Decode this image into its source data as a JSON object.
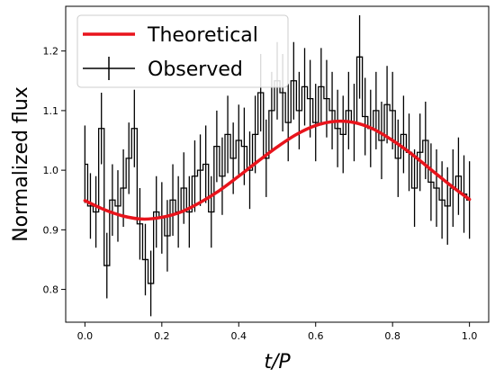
{
  "chart_data": {
    "type": "line",
    "xlabel": "t/P",
    "ylabel": "Normalized flux",
    "xlim": [
      -0.05,
      1.05
    ],
    "ylim": [
      0.745,
      1.275
    ],
    "xticks": [
      "0.0",
      "0.2",
      "0.4",
      "0.6",
      "0.8",
      "1.0"
    ],
    "yticks": [
      "0.8",
      "0.9",
      "1.0",
      "1.1",
      "1.2"
    ],
    "grid": false,
    "legend_position": "top-left",
    "series": [
      {
        "name": "Theoretical",
        "kind": "line",
        "color": "#e8141c",
        "x": [
          0,
          0.05,
          0.1,
          0.15,
          0.2,
          0.25,
          0.3,
          0.35,
          0.4,
          0.45,
          0.5,
          0.55,
          0.6,
          0.65,
          0.7,
          0.75,
          0.8,
          0.85,
          0.9,
          0.95,
          1.0
        ],
        "y": [
          0.949,
          0.934,
          0.923,
          0.918,
          0.921,
          0.93,
          0.946,
          0.966,
          0.99,
          1.015,
          1.039,
          1.06,
          1.075,
          1.082,
          1.08,
          1.069,
          1.05,
          1.027,
          1.001,
          0.975,
          0.951
        ]
      },
      {
        "name": "Observed",
        "kind": "step-errorbar",
        "color": "#000000",
        "x": [
          0.0,
          0.0143,
          0.0286,
          0.0429,
          0.0571,
          0.0714,
          0.0857,
          0.1,
          0.1143,
          0.1286,
          0.1429,
          0.1571,
          0.1714,
          0.1857,
          0.2,
          0.2143,
          0.2286,
          0.2429,
          0.2571,
          0.2714,
          0.2857,
          0.3,
          0.3143,
          0.3286,
          0.3429,
          0.3571,
          0.3714,
          0.3857,
          0.4,
          0.4143,
          0.4286,
          0.4429,
          0.4571,
          0.4714,
          0.4857,
          0.5,
          0.5143,
          0.5286,
          0.5429,
          0.5571,
          0.5714,
          0.5857,
          0.6,
          0.6143,
          0.6286,
          0.6429,
          0.6571,
          0.6714,
          0.6857,
          0.7,
          0.7143,
          0.7286,
          0.7429,
          0.7571,
          0.7714,
          0.7857,
          0.8,
          0.8143,
          0.8286,
          0.8429,
          0.8571,
          0.8714,
          0.8857,
          0.9,
          0.9143,
          0.9286,
          0.9429,
          0.9571,
          0.9714,
          0.9857,
          1.0
        ],
        "y": [
          1.01,
          0.94,
          0.93,
          1.07,
          0.84,
          0.95,
          0.94,
          0.97,
          1.02,
          1.07,
          0.91,
          0.85,
          0.81,
          0.93,
          0.92,
          0.89,
          0.95,
          0.93,
          0.97,
          0.93,
          0.99,
          1.0,
          1.01,
          0.93,
          1.04,
          0.99,
          1.06,
          1.02,
          1.05,
          1.04,
          1.0,
          1.06,
          1.13,
          1.02,
          1.1,
          1.15,
          1.13,
          1.08,
          1.15,
          1.1,
          1.14,
          1.12,
          1.08,
          1.14,
          1.12,
          1.1,
          1.07,
          1.06,
          1.1,
          1.08,
          1.19,
          1.09,
          1.07,
          1.1,
          1.05,
          1.11,
          1.1,
          1.02,
          1.06,
          1.03,
          0.97,
          1.03,
          1.05,
          0.98,
          0.97,
          0.95,
          0.94,
          0.97,
          0.99,
          0.96,
          0.95
        ],
        "yerr": [
          0.065,
          0.055,
          0.06,
          0.06,
          0.055,
          0.06,
          0.06,
          0.065,
          0.06,
          0.065,
          0.06,
          0.06,
          0.055,
          0.06,
          0.06,
          0.06,
          0.06,
          0.06,
          0.06,
          0.06,
          0.06,
          0.06,
          0.065,
          0.06,
          0.06,
          0.065,
          0.065,
          0.06,
          0.06,
          0.065,
          0.065,
          0.065,
          0.065,
          0.065,
          0.065,
          0.065,
          0.065,
          0.065,
          0.065,
          0.065,
          0.065,
          0.065,
          0.065,
          0.065,
          0.065,
          0.065,
          0.065,
          0.065,
          0.065,
          0.065,
          0.07,
          0.065,
          0.065,
          0.065,
          0.065,
          0.065,
          0.065,
          0.065,
          0.065,
          0.065,
          0.065,
          0.065,
          0.065,
          0.065,
          0.065,
          0.065,
          0.065,
          0.065,
          0.065,
          0.065,
          0.065
        ]
      }
    ]
  }
}
